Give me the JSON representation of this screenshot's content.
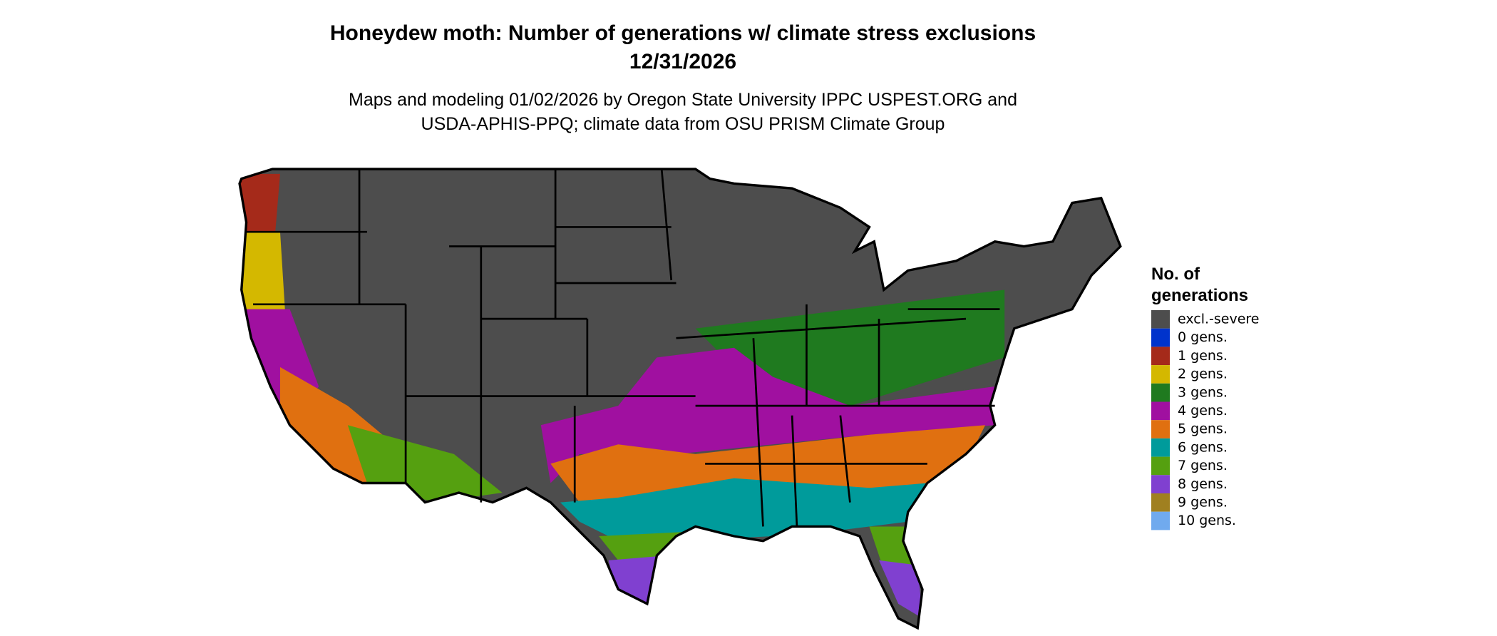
{
  "header": {
    "title": "Honeydew moth: Number of generations w/ climate stress exclusions",
    "date": "12/31/2026",
    "subtitle": [
      "Maps and modeling 01/02/2026 by Oregon State University IPPC USPEST.ORG and",
      "USDA-APHIS-PPQ; climate data from OSU PRISM Climate Group"
    ]
  },
  "legend": {
    "title": [
      "No. of",
      "generations"
    ],
    "items": [
      {
        "label": "excl.-severe",
        "color": "#4d4d4d"
      },
      {
        "label": "0 gens.",
        "color": "#0033cc"
      },
      {
        "label": "1 gens.",
        "color": "#a52a1a"
      },
      {
        "label": "2 gens.",
        "color": "#d4b800"
      },
      {
        "label": "3 gens.",
        "color": "#1f7a1f"
      },
      {
        "label": "4 gens.",
        "color": "#a010a0"
      },
      {
        "label": "5 gens.",
        "color": "#e07010"
      },
      {
        "label": "6 gens.",
        "color": "#009b9b"
      },
      {
        "label": "7 gens.",
        "color": "#55a010"
      },
      {
        "label": "8 gens.",
        "color": "#8040d0"
      },
      {
        "label": "9 gens.",
        "color": "#a08020"
      },
      {
        "label": "10 gens.",
        "color": "#70aaee"
      }
    ]
  }
}
